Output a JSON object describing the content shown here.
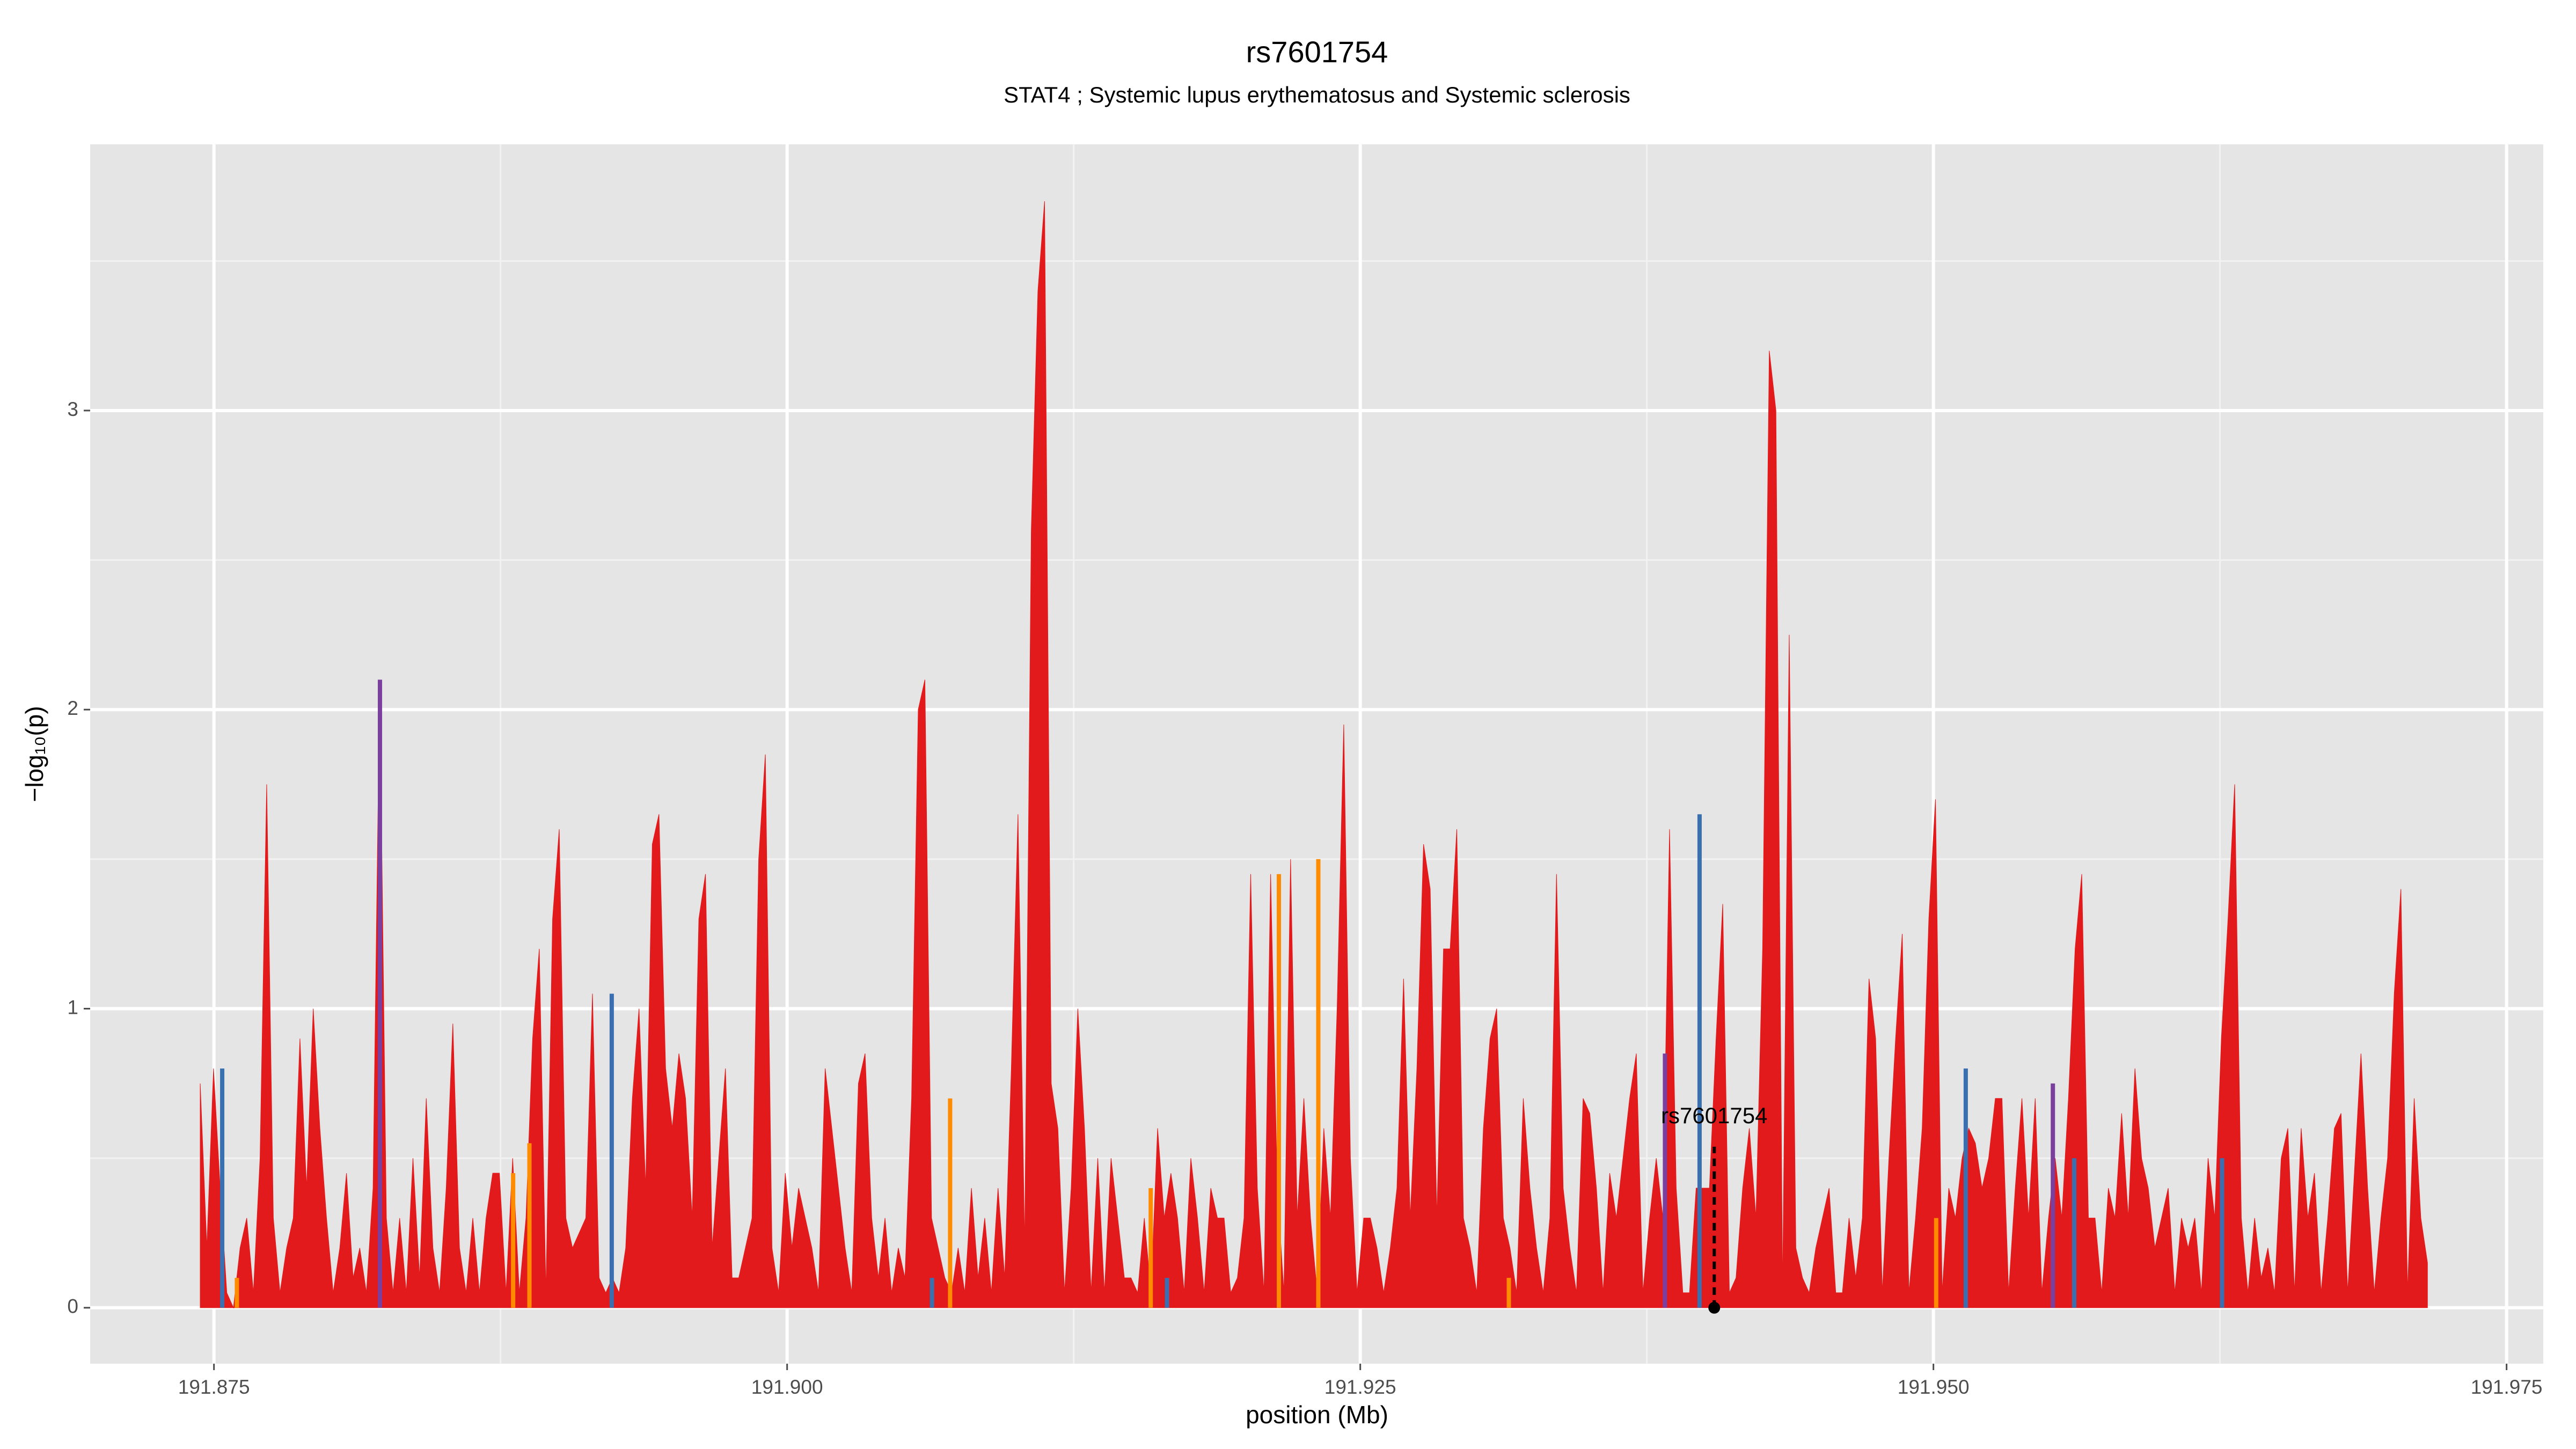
{
  "chart_data": {
    "type": "area",
    "title": "rs7601754",
    "subtitle": "STAT4 ; Systemic lupus erythematosus and Systemic sclerosis",
    "xlabel": "position (Mb)",
    "ylabel": "−log₁₀(p)",
    "xlim": [
      191.8696,
      191.9766
    ],
    "ylim": [
      -0.187,
      3.89
    ],
    "xticks": [
      191.875,
      {
        "value": 191.9,
        "label": "191.900"
      },
      191.925,
      {
        "value": 191.95,
        "label": "191.950"
      },
      191.975
    ],
    "yticks": [
      0,
      1,
      2,
      3
    ],
    "grid": true,
    "series": [
      {
        "color": "#e31a1c",
        "x": [
          191.8744,
          191.87469,
          191.87498,
          191.87527,
          191.87556,
          191.87585,
          191.87614,
          191.87643,
          191.87672,
          191.87701,
          191.8773,
          191.87759,
          191.87788,
          191.87817,
          191.87846,
          191.87875,
          191.87904,
          191.87933,
          191.87962,
          191.87991,
          191.8802,
          191.88049,
          191.88078,
          191.88107,
          191.88136,
          191.88165,
          191.88194,
          191.88223,
          191.88252,
          191.88281,
          191.8831,
          191.88339,
          191.88368,
          191.88397,
          191.88426,
          191.88455,
          191.88484,
          191.88513,
          191.88542,
          191.88571,
          191.886,
          191.88629,
          191.88658,
          191.88687,
          191.88716,
          191.88745,
          191.88774,
          191.88803,
          191.88832,
          191.88861,
          191.8889,
          191.88919,
          191.88948,
          191.88977,
          191.89006,
          191.89035,
          191.89064,
          191.89093,
          191.89122,
          191.89151,
          191.8918,
          191.89209,
          191.89238,
          191.89267,
          191.89296,
          191.89325,
          191.89354,
          191.89383,
          191.89412,
          191.89441,
          191.8947,
          191.89499,
          191.89528,
          191.89557,
          191.89586,
          191.89615,
          191.89644,
          191.89673,
          191.89702,
          191.89731,
          191.8976,
          191.89789,
          191.89818,
          191.89847,
          191.89876,
          191.89905,
          191.89934,
          191.89963,
          191.89992,
          191.90021,
          191.9005,
          191.90079,
          191.90108,
          191.90137,
          191.90166,
          191.90195,
          191.90224,
          191.90253,
          191.90282,
          191.90311,
          191.9034,
          191.90369,
          191.90398,
          191.90427,
          191.90456,
          191.90485,
          191.90514,
          191.90543,
          191.90572,
          191.90601,
          191.9063,
          191.90659,
          191.90688,
          191.90717,
          191.90746,
          191.90775,
          191.90804,
          191.90833,
          191.90862,
          191.90891,
          191.9092,
          191.90949,
          191.90978,
          191.91007,
          191.91036,
          191.91065,
          191.91094,
          191.91123,
          191.91152,
          191.91181,
          191.9121,
          191.91239,
          191.91268,
          191.91297,
          191.91326,
          191.91355,
          191.91384,
          191.91413,
          191.91442,
          191.91471,
          191.915,
          191.91529,
          191.91558,
          191.91587,
          191.91616,
          191.91645,
          191.91674,
          191.91703,
          191.91732,
          191.91761,
          191.9179,
          191.91819,
          191.91848,
          191.91877,
          191.91906,
          191.91935,
          191.91964,
          191.91993,
          191.92022,
          191.92051,
          191.9208,
          191.92109,
          191.92138,
          191.92167,
          191.92196,
          191.92225,
          191.92254,
          191.92283,
          191.92312,
          191.92341,
          191.9237,
          191.92399,
          191.92428,
          191.92457,
          191.92486,
          191.92515,
          191.92544,
          191.92573,
          191.92602,
          191.92631,
          191.9266,
          191.92689,
          191.92718,
          191.92747,
          191.92776,
          191.92805,
          191.92834,
          191.92863,
          191.92892,
          191.92921,
          191.9295,
          191.92979,
          191.93008,
          191.93037,
          191.93066,
          191.93095,
          191.93124,
          191.93153,
          191.93182,
          191.93211,
          191.9324,
          191.93269,
          191.93298,
          191.93327,
          191.93356,
          191.93385,
          191.93414,
          191.93443,
          191.93472,
          191.93501,
          191.9353,
          191.93559,
          191.93588,
          191.93617,
          191.93646,
          191.93675,
          191.93704,
          191.93733,
          191.93762,
          191.93791,
          191.9382,
          191.93849,
          191.93878,
          191.93907,
          191.93936,
          191.93965,
          191.93994,
          191.94023,
          191.94052,
          191.94081,
          191.9411,
          191.94139,
          191.94168,
          191.94197,
          191.94226,
          191.94255,
          191.94284,
          191.94313,
          191.94342,
          191.94371,
          191.944,
          191.94429,
          191.94458,
          191.94487,
          191.94516,
          191.94545,
          191.94574,
          191.94603,
          191.94632,
          191.94661,
          191.9469,
          191.94719,
          191.94748,
          191.94777,
          191.94806,
          191.94835,
          191.94864,
          191.94893,
          191.94922,
          191.94951,
          191.9498,
          191.95009,
          191.95038,
          191.95067,
          191.95096,
          191.95125,
          191.95154,
          191.95183,
          191.95212,
          191.95241,
          191.9527,
          191.95299,
          191.95328,
          191.95357,
          191.95386,
          191.95415,
          191.95444,
          191.95473,
          191.95502,
          191.95531,
          191.9556,
          191.95589,
          191.95618,
          191.95647,
          191.95676,
          191.95705,
          191.95734,
          191.95763,
          191.95792,
          191.95821,
          191.9585,
          191.95879,
          191.95908,
          191.95937,
          191.95966,
          191.95995,
          191.96024,
          191.96053,
          191.96082,
          191.96111,
          191.9614,
          191.96169,
          191.96198,
          191.96227,
          191.96256,
          191.96285,
          191.96314,
          191.96343,
          191.96372,
          191.96401,
          191.9643,
          191.96459,
          191.96488,
          191.96517,
          191.96546,
          191.96575,
          191.96604,
          191.96633,
          191.96662,
          191.96691,
          191.9672,
          191.96749,
          191.96778,
          191.96807,
          191.96836,
          191.96865,
          191.96894,
          191.96923,
          191.96952,
          191.96981,
          191.9701,
          191.97039,
          191.97068,
          191.97097,
          191.97126,
          191.97155
        ],
        "values": [
          0.75,
          0.2,
          0.8,
          0.4,
          0.05,
          0,
          0.2,
          0.3,
          0.05,
          0.5,
          1.75,
          0.3,
          0.05,
          0.2,
          0.3,
          0.9,
          0.4,
          1.0,
          0.6,
          0.3,
          0.05,
          0.2,
          0.45,
          0.1,
          0.2,
          0.05,
          0.4,
          2.1,
          0.3,
          0.05,
          0.3,
          0.05,
          0.5,
          0.1,
          0.7,
          0.2,
          0.05,
          0.4,
          0.95,
          0.2,
          0.05,
          0.3,
          0.05,
          0.3,
          0.45,
          0.45,
          0.05,
          0.5,
          0.05,
          0.3,
          0.9,
          1.2,
          0.05,
          1.3,
          1.6,
          0.3,
          0.2,
          0.25,
          0.3,
          1.05,
          0.1,
          0.05,
          0.1,
          0.05,
          0.2,
          0.7,
          1.0,
          0.4,
          1.55,
          1.65,
          0.8,
          0.6,
          0.85,
          0.7,
          0.3,
          1.3,
          1.45,
          0.2,
          0.5,
          0.8,
          0.1,
          0.1,
          0.2,
          0.3,
          1.5,
          1.85,
          0.2,
          0.05,
          0.45,
          0.2,
          0.4,
          0.3,
          0.2,
          0.05,
          0.8,
          0.6,
          0.4,
          0.2,
          0.05,
          0.75,
          0.85,
          0.3,
          0.1,
          0.3,
          0.05,
          0.2,
          0.1,
          0.7,
          2.0,
          2.1,
          0.3,
          0.2,
          0.1,
          0.05,
          0.2,
          0.05,
          0.4,
          0.1,
          0.3,
          0.05,
          0.4,
          0.1,
          0.8,
          1.65,
          0.2,
          2.6,
          3.4,
          3.7,
          0.75,
          0.6,
          0.05,
          0.4,
          1.0,
          0.6,
          0.05,
          0.5,
          0.05,
          0.5,
          0.3,
          0.1,
          0.1,
          0.05,
          0.3,
          0.05,
          0.6,
          0.3,
          0.45,
          0.3,
          0.05,
          0.5,
          0.3,
          0.05,
          0.4,
          0.3,
          0.3,
          0.05,
          0.1,
          0.3,
          1.45,
          0.4,
          0.05,
          1.45,
          0.4,
          0.05,
          1.5,
          0.3,
          0.7,
          0.3,
          0.05,
          0.6,
          0.3,
          1.0,
          1.95,
          0.5,
          0.05,
          0.3,
          0.3,
          0.2,
          0.05,
          0.2,
          0.4,
          1.1,
          0.3,
          0.8,
          1.55,
          1.4,
          0.3,
          1.2,
          1.2,
          1.6,
          0.3,
          0.2,
          0.05,
          0.6,
          0.9,
          1.0,
          0.3,
          0.2,
          0.05,
          0.7,
          0.4,
          0.2,
          0.05,
          0.3,
          1.45,
          0.4,
          0.2,
          0.05,
          0.7,
          0.65,
          0.4,
          0.05,
          0.45,
          0.3,
          0.5,
          0.7,
          0.85,
          0.05,
          0.3,
          0.5,
          0.3,
          1.6,
          0.4,
          0.05,
          0.05,
          0.4,
          0.4,
          0.4,
          0.9,
          1.35,
          0.05,
          0.1,
          0.4,
          0.6,
          0.3,
          1.2,
          3.2,
          3.0,
          0.05,
          2.25,
          0.2,
          0.1,
          0.05,
          0.2,
          0.3,
          0.4,
          0.05,
          0.05,
          0.3,
          0.1,
          0.3,
          1.1,
          0.9,
          0.05,
          0.5,
          0.9,
          1.25,
          0.05,
          0.3,
          0.6,
          1.3,
          1.7,
          0.05,
          0.4,
          0.3,
          0.5,
          0.6,
          0.55,
          0.4,
          0.5,
          0.7,
          0.7,
          0.05,
          0.4,
          0.7,
          0.3,
          0.7,
          0.05,
          0.3,
          0.5,
          0.3,
          0.7,
          1.2,
          1.45,
          0.3,
          0.3,
          0.05,
          0.4,
          0.3,
          0.65,
          0.3,
          0.8,
          0.5,
          0.4,
          0.2,
          0.3,
          0.4,
          0.05,
          0.3,
          0.2,
          0.3,
          0.05,
          0.5,
          0.3,
          0.9,
          1.3,
          1.75,
          0.3,
          0.05,
          0.3,
          0.1,
          0.2,
          0.05,
          0.5,
          0.6,
          0.05,
          0.6,
          0.3,
          0.45,
          0.05,
          0.3,
          0.6,
          0.65,
          0.05,
          0.45,
          0.85,
          0.4,
          0.05,
          0.3,
          0.5,
          1.05,
          1.4,
          0.05,
          0.7,
          0.3,
          0.15
        ]
      },
      {
        "color": "#3a6fb0",
        "x": [
          191.87536,
          191.89235,
          191.90632,
          191.91657,
          191.9398,
          191.95141,
          191.95614,
          191.96259
        ],
        "values": [
          0.8,
          1.05,
          0.1,
          0.1,
          1.65,
          0.8,
          0.5,
          0.5
        ]
      },
      {
        "color": "#7b3f9e",
        "x": [
          191.88224,
          191.93829,
          191.95521
        ],
        "values": [
          2.1,
          0.85,
          0.75
        ]
      },
      {
        "color": "#ff8c00",
        "x": [
          191.876,
          191.88805,
          191.88876,
          191.90711,
          191.91586,
          191.92145,
          191.92317,
          191.93148,
          191.95012
        ],
        "values": [
          0.1,
          0.45,
          0.55,
          0.7,
          0.4,
          1.45,
          1.5,
          0.1,
          0.3
        ]
      }
    ],
    "annotations": [
      {
        "text": "rs7601754",
        "x": 191.94044,
        "y": 0
      }
    ]
  }
}
